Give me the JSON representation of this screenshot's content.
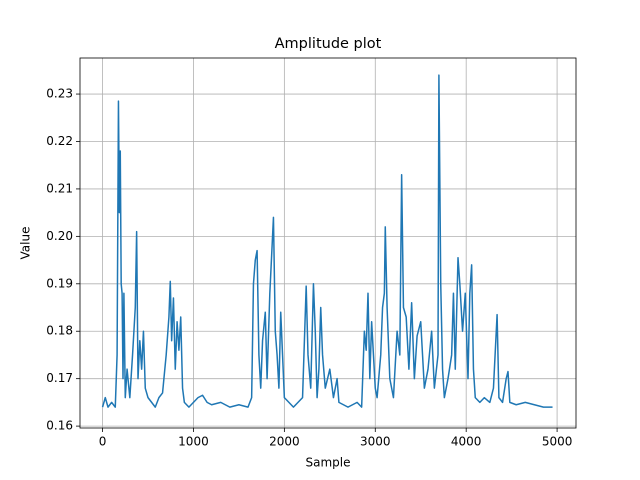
{
  "chart_data": {
    "type": "line",
    "title": "Amplitude plot",
    "x_label": "Sample",
    "y_label": "Value",
    "color": "#1f77b4",
    "grid": true,
    "xlim": [
      -248,
      5208
    ],
    "ylim": [
      0.1596,
      0.2376
    ],
    "xticks": [
      0,
      1000,
      2000,
      3000,
      4000,
      5000
    ],
    "yticks": [
      0.16,
      0.17,
      0.18,
      0.19,
      {
        "value": 0.2,
        "label": "0.20"
      },
      0.21,
      0.22,
      0.23
    ],
    "x": [
      0,
      30,
      60,
      100,
      140,
      160,
      175,
      185,
      195,
      205,
      215,
      225,
      235,
      250,
      270,
      300,
      330,
      360,
      375,
      390,
      410,
      430,
      450,
      470,
      500,
      540,
      580,
      620,
      660,
      700,
      730,
      745,
      760,
      780,
      800,
      820,
      840,
      860,
      880,
      900,
      950,
      1000,
      1050,
      1100,
      1150,
      1200,
      1300,
      1400,
      1500,
      1600,
      1640,
      1660,
      1680,
      1700,
      1720,
      1740,
      1760,
      1790,
      1810,
      1840,
      1860,
      1880,
      1900,
      1920,
      1940,
      1960,
      1980,
      2000,
      2050,
      2100,
      2150,
      2200,
      2240,
      2260,
      2290,
      2320,
      2340,
      2360,
      2380,
      2400,
      2420,
      2450,
      2500,
      2540,
      2580,
      2600,
      2700,
      2800,
      2850,
      2880,
      2900,
      2920,
      2940,
      2960,
      2980,
      3000,
      3020,
      3060,
      3080,
      3100,
      3110,
      3130,
      3160,
      3200,
      3240,
      3270,
      3290,
      3310,
      3340,
      3370,
      3400,
      3430,
      3460,
      3500,
      3540,
      3580,
      3620,
      3650,
      3690,
      3700,
      3720,
      3740,
      3760,
      3800,
      3840,
      3860,
      3880,
      3910,
      3930,
      3960,
      3990,
      4020,
      4040,
      4060,
      4080,
      4100,
      4150,
      4200,
      4260,
      4300,
      4340,
      4360,
      4400,
      4440,
      4460,
      4480,
      4550,
      4650,
      4750,
      4850,
      4950
    ],
    "values": [
      0.164,
      0.166,
      0.164,
      0.165,
      0.164,
      0.175,
      0.2285,
      0.205,
      0.218,
      0.19,
      0.188,
      0.17,
      0.188,
      0.166,
      0.172,
      0.166,
      0.175,
      0.185,
      0.201,
      0.17,
      0.178,
      0.172,
      0.18,
      0.168,
      0.166,
      0.165,
      0.164,
      0.166,
      0.167,
      0.175,
      0.183,
      0.1905,
      0.178,
      0.187,
      0.172,
      0.182,
      0.176,
      0.183,
      0.168,
      0.165,
      0.164,
      0.165,
      0.166,
      0.1665,
      0.165,
      0.1645,
      0.165,
      0.164,
      0.1645,
      0.164,
      0.166,
      0.19,
      0.195,
      0.197,
      0.175,
      0.168,
      0.178,
      0.184,
      0.17,
      0.188,
      0.196,
      0.204,
      0.18,
      0.175,
      0.168,
      0.184,
      0.175,
      0.166,
      0.165,
      0.164,
      0.165,
      0.166,
      0.1895,
      0.175,
      0.168,
      0.19,
      0.18,
      0.166,
      0.172,
      0.185,
      0.175,
      0.168,
      0.172,
      0.166,
      0.17,
      0.165,
      0.164,
      0.165,
      0.164,
      0.18,
      0.176,
      0.188,
      0.17,
      0.182,
      0.175,
      0.168,
      0.166,
      0.175,
      0.185,
      0.188,
      0.202,
      0.185,
      0.17,
      0.166,
      0.18,
      0.175,
      0.213,
      0.185,
      0.183,
      0.172,
      0.186,
      0.17,
      0.179,
      0.182,
      0.168,
      0.172,
      0.18,
      0.168,
      0.175,
      0.234,
      0.19,
      0.172,
      0.166,
      0.17,
      0.175,
      0.188,
      0.172,
      0.1955,
      0.19,
      0.18,
      0.188,
      0.17,
      0.188,
      0.194,
      0.172,
      0.166,
      0.165,
      0.166,
      0.165,
      0.168,
      0.1835,
      0.166,
      0.165,
      0.17,
      0.1715,
      0.165,
      0.1645,
      0.165,
      0.1645,
      0.164,
      0.164
    ]
  }
}
